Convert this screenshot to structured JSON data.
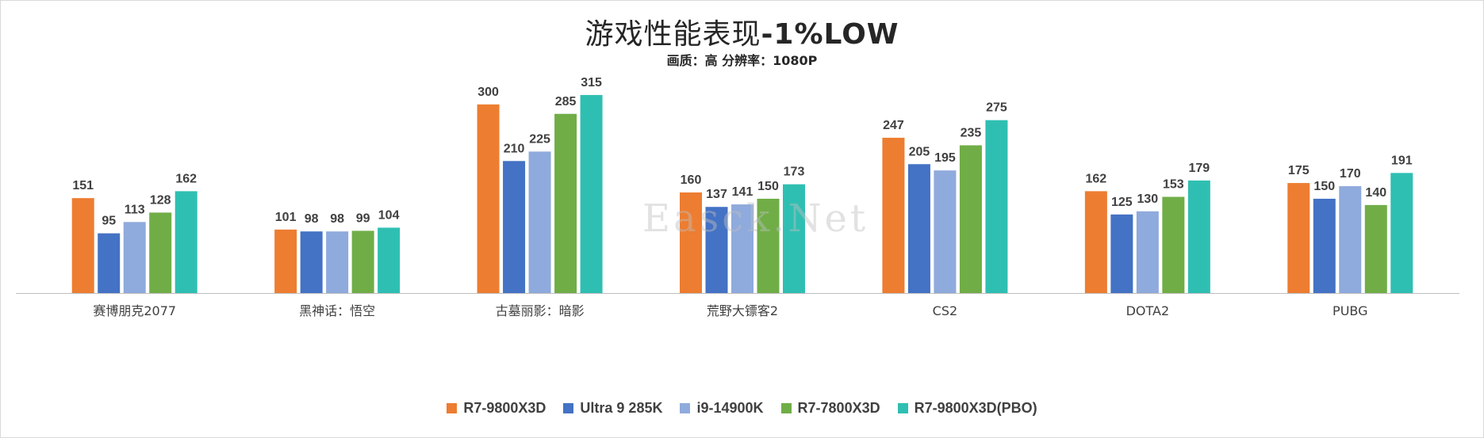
{
  "title_cn": "游戏性能表现",
  "title_latin": "-1%LOW",
  "subtitle": "画质：高 分辨率：1080P",
  "watermark": "Easck.Net",
  "chart_data": {
    "type": "bar",
    "title": "游戏性能表现-1%LOW",
    "subtitle": "画质：高 分辨率：1080P",
    "categories": [
      "赛博朋克2077",
      "黑神话：悟空",
      "古墓丽影：暗影",
      "荒野大镖客2",
      "CS2",
      "DOTA2",
      "PUBG"
    ],
    "series": [
      {
        "name": "R7-9800X3D",
        "color": "#ED7D31",
        "values": [
          151,
          101,
          300,
          160,
          247,
          162,
          175
        ]
      },
      {
        "name": "Ultra 9 285K",
        "color": "#4472C4",
        "values": [
          95,
          98,
          210,
          137,
          205,
          125,
          150
        ]
      },
      {
        "name": "i9-14900K",
        "color": "#8FAADC",
        "values": [
          113,
          98,
          225,
          141,
          195,
          130,
          170
        ]
      },
      {
        "name": "R7-7800X3D",
        "color": "#70AD47",
        "values": [
          128,
          99,
          285,
          150,
          235,
          153,
          140
        ]
      },
      {
        "name": "R7-9800X3D(PBO)",
        "color": "#2FBFB2",
        "values": [
          162,
          104,
          315,
          173,
          275,
          179,
          191
        ]
      }
    ],
    "ylim": [
      0,
      325
    ],
    "grid": false,
    "axis_line_color": "#bfbfbf",
    "legend_position": "bottom"
  }
}
